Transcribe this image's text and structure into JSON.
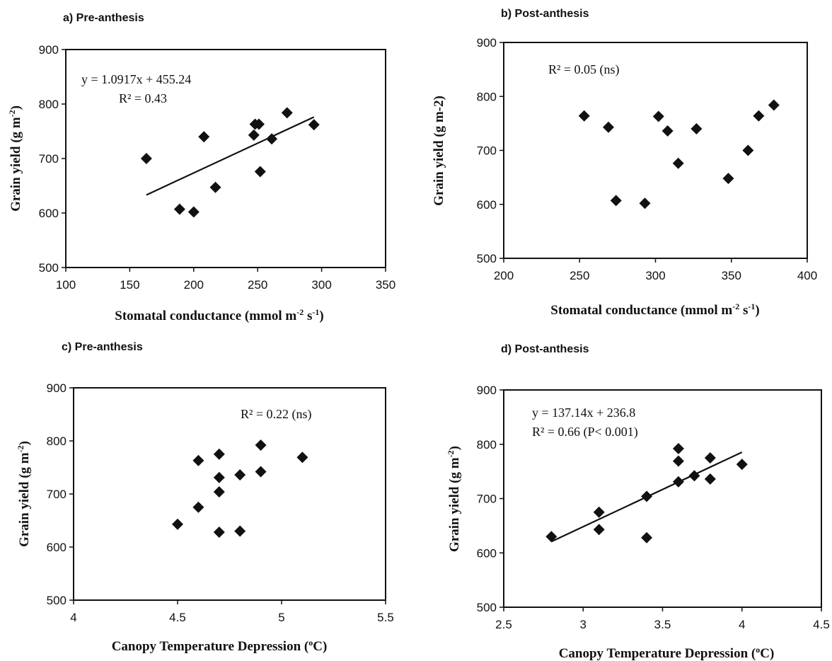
{
  "chart_data": [
    {
      "type": "scatter",
      "title": "a) Pre-anthesis",
      "xlabel": "Stomatal conductance  (mmol m",
      "xlabel_sup1": "-2",
      "xlabel_mid": " s",
      "xlabel_sup2": "-1",
      "xlabel_end": ")",
      "ylabel": "Grain yield (g m",
      "ylabel_sup": "-2",
      "ylabel_end": ")",
      "xlim": [
        100,
        350
      ],
      "ylim": [
        500,
        900
      ],
      "xticks": [
        "100",
        "150",
        "200",
        "250",
        "300",
        "350"
      ],
      "yticks": [
        "500",
        "600",
        "700",
        "800",
        "900"
      ],
      "points": [
        [
          163,
          700
        ],
        [
          189,
          607
        ],
        [
          200,
          602
        ],
        [
          208,
          740
        ],
        [
          217,
          647
        ],
        [
          247,
          743
        ],
        [
          248,
          763
        ],
        [
          251,
          763
        ],
        [
          252,
          676
        ],
        [
          261,
          736
        ],
        [
          273,
          784
        ],
        [
          294,
          762
        ]
      ],
      "trendline": {
        "slope": 1.0917,
        "intercept": 455.24,
        "x_range": [
          163,
          294
        ]
      },
      "annotations": [
        "y = 1.0917x + 455.24",
        "R² = 0.43"
      ]
    },
    {
      "type": "scatter",
      "title": "b) Post-anthesis",
      "xlabel": "Stomatal conductance  (mmol m",
      "xlabel_sup1": "-2",
      "xlabel_mid": " s",
      "xlabel_sup2": "-1",
      "xlabel_end": ")",
      "ylabel": "Grain yield (g m-2)",
      "xlim": [
        200,
        400
      ],
      "ylim": [
        500,
        900
      ],
      "xticks": [
        "200",
        "250",
        "300",
        "350",
        "400"
      ],
      "yticks": [
        "500",
        "600",
        "700",
        "800",
        "900"
      ],
      "points": [
        [
          253,
          764
        ],
        [
          269,
          743
        ],
        [
          274,
          607
        ],
        [
          293,
          602
        ],
        [
          302,
          763
        ],
        [
          308,
          736
        ],
        [
          315,
          676
        ],
        [
          327,
          740
        ],
        [
          348,
          648
        ],
        [
          361,
          700
        ],
        [
          368,
          764
        ],
        [
          378,
          784
        ]
      ],
      "annotations": [
        "R² = 0.05 (ns)"
      ]
    },
    {
      "type": "scatter",
      "title": "c) Pre-anthesis",
      "xlabel": "Canopy Temperature Depression (",
      "xlabel_sup1": "o",
      "xlabel_end": "C)",
      "ylabel": "Grain yield (g m",
      "ylabel_sup": "-2",
      "ylabel_end": ")",
      "xlim": [
        4,
        5.5
      ],
      "ylim": [
        500,
        900
      ],
      "xticks": [
        "4",
        "4.5",
        "5",
        "5.5"
      ],
      "yticks": [
        "500",
        "600",
        "700",
        "800",
        "900"
      ],
      "points": [
        [
          4.5,
          643
        ],
        [
          4.6,
          763
        ],
        [
          4.6,
          675
        ],
        [
          4.7,
          775
        ],
        [
          4.7,
          731
        ],
        [
          4.7,
          704
        ],
        [
          4.7,
          628
        ],
        [
          4.8,
          736
        ],
        [
          4.8,
          630
        ],
        [
          4.9,
          792
        ],
        [
          4.9,
          742
        ],
        [
          5.1,
          769
        ]
      ],
      "annotations": [
        "R² = 0.22 (ns)"
      ]
    },
    {
      "type": "scatter",
      "title": "d) Post-anthesis",
      "xlabel": "Canopy Temperature Depression (",
      "xlabel_sup1": "o",
      "xlabel_end": "C)",
      "ylabel": "Grain yield (g m",
      "ylabel_sup": "-2",
      "ylabel_end": ")",
      "xlim": [
        2.5,
        4.5
      ],
      "ylim": [
        500,
        900
      ],
      "xticks": [
        "2.5",
        "3",
        "3.5",
        "4",
        "4.5"
      ],
      "yticks": [
        "500",
        "600",
        "700",
        "800",
        "900"
      ],
      "points": [
        [
          2.8,
          630
        ],
        [
          3.1,
          675
        ],
        [
          3.1,
          643
        ],
        [
          3.4,
          704
        ],
        [
          3.4,
          628
        ],
        [
          3.6,
          792
        ],
        [
          3.6,
          769
        ],
        [
          3.6,
          731
        ],
        [
          3.7,
          742
        ],
        [
          3.8,
          775
        ],
        [
          3.8,
          736
        ],
        [
          4.0,
          763
        ]
      ],
      "trendline": {
        "slope": 137.14,
        "intercept": 236.8,
        "x_range": [
          2.8,
          4.0
        ]
      },
      "annotations": [
        "y = 137.14x + 236.8",
        "R² = 0.66 (P< 0.001)"
      ]
    }
  ]
}
